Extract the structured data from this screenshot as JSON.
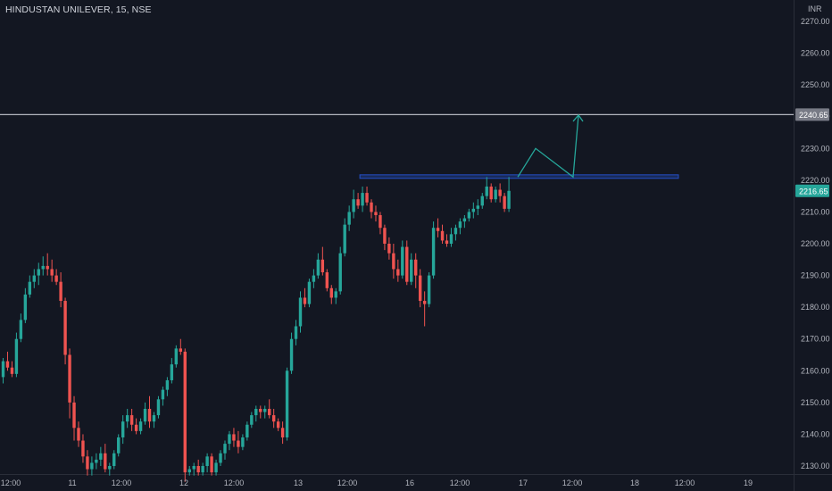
{
  "header": {
    "symbol_label": "HINDUSTAN UNILEVER, 15, NSE"
  },
  "price_axis": {
    "currency": "INR",
    "ticks": [
      "2270.00",
      "2260.00",
      "2250.00",
      "2240.00",
      "2230.00",
      "2220.00",
      "2210.00",
      "2200.00",
      "2190.00",
      "2180.00",
      "2170.00",
      "2160.00",
      "2150.00",
      "2140.00",
      "2130.00"
    ]
  },
  "badges": {
    "horizontal_line_price": "2240.65",
    "last_price": "2216.65"
  },
  "colors": {
    "background": "#131722",
    "up": "#26a69a",
    "down": "#ef5350",
    "hline": "#b2b5be",
    "zone": "#2962ff",
    "projection": "#26a69a"
  },
  "chart_data": {
    "type": "candlestick",
    "ylim": [
      2127,
      2273
    ],
    "time_labels": [
      "12:00",
      "11",
      "12:00",
      "12",
      "12:00",
      "13",
      "12:00",
      "16",
      "12:00",
      "17",
      "12:00",
      "18",
      "12:00",
      "19"
    ],
    "horizontal_line": 2240.65,
    "resistance_zone": [
      2220.7,
      2221.7
    ],
    "projection_path": [
      2221,
      2230,
      2221,
      2240.5
    ],
    "candles": [
      [
        2158,
        2164,
        2156,
        2163
      ],
      [
        2163,
        2166,
        2160,
        2161
      ],
      [
        2161,
        2163,
        2158,
        2159
      ],
      [
        2159,
        2172,
        2158,
        2170
      ],
      [
        2170,
        2178,
        2169,
        2176
      ],
      [
        2176,
        2186,
        2175,
        2184
      ],
      [
        2184,
        2190,
        2183,
        2188
      ],
      [
        2188,
        2192,
        2186,
        2190
      ],
      [
        2190,
        2194,
        2187,
        2192
      ],
      [
        2192,
        2196,
        2190,
        2193
      ],
      [
        2193,
        2197,
        2190,
        2192
      ],
      [
        2192,
        2195,
        2188,
        2190
      ],
      [
        2190,
        2192,
        2187,
        2188
      ],
      [
        2188,
        2191,
        2180,
        2182
      ],
      [
        2182,
        2183,
        2162,
        2165
      ],
      [
        2165,
        2167,
        2145,
        2150
      ],
      [
        2150,
        2152,
        2138,
        2142
      ],
      [
        2142,
        2144,
        2136,
        2138
      ],
      [
        2138,
        2140,
        2131,
        2133
      ],
      [
        2133,
        2135,
        2127,
        2129
      ],
      [
        2129,
        2133,
        2127,
        2131
      ],
      [
        2131,
        2134,
        2129,
        2132
      ],
      [
        2132,
        2136,
        2130,
        2134
      ],
      [
        2134,
        2137,
        2128,
        2129
      ],
      [
        2129,
        2131,
        2127,
        2130
      ],
      [
        2130,
        2135,
        2129,
        2134
      ],
      [
        2134,
        2140,
        2133,
        2139
      ],
      [
        2139,
        2146,
        2137,
        2144
      ],
      [
        2144,
        2148,
        2142,
        2146
      ],
      [
        2146,
        2148,
        2141,
        2143
      ],
      [
        2143,
        2145,
        2140,
        2141
      ],
      [
        2141,
        2145,
        2140,
        2144
      ],
      [
        2144,
        2150,
        2143,
        2148
      ],
      [
        2148,
        2152,
        2142,
        2144
      ],
      [
        2144,
        2147,
        2142,
        2146
      ],
      [
        2146,
        2152,
        2145,
        2151
      ],
      [
        2151,
        2155,
        2149,
        2154
      ],
      [
        2154,
        2158,
        2152,
        2157
      ],
      [
        2157,
        2164,
        2156,
        2162
      ],
      [
        2162,
        2168,
        2161,
        2167
      ],
      [
        2167,
        2170,
        2165,
        2166
      ],
      [
        2166,
        2167,
        2125,
        2128
      ],
      [
        2128,
        2130,
        2127,
        2129
      ],
      [
        2129,
        2131,
        2127,
        2130
      ],
      [
        2130,
        2132,
        2127,
        2128
      ],
      [
        2128,
        2131,
        2127,
        2130
      ],
      [
        2130,
        2134,
        2128,
        2133
      ],
      [
        2133,
        2134,
        2127,
        2128
      ],
      [
        2128,
        2132,
        2127,
        2131
      ],
      [
        2131,
        2135,
        2130,
        2134
      ],
      [
        2134,
        2138,
        2132,
        2137
      ],
      [
        2137,
        2141,
        2135,
        2140
      ],
      [
        2140,
        2142,
        2136,
        2138
      ],
      [
        2138,
        2141,
        2134,
        2136
      ],
      [
        2136,
        2140,
        2135,
        2139
      ],
      [
        2139,
        2144,
        2138,
        2143
      ],
      [
        2143,
        2147,
        2142,
        2146
      ],
      [
        2146,
        2149,
        2144,
        2148
      ],
      [
        2148,
        2149,
        2145,
        2147
      ],
      [
        2147,
        2149,
        2145,
        2148
      ],
      [
        2148,
        2151,
        2145,
        2146
      ],
      [
        2146,
        2148,
        2142,
        2144
      ],
      [
        2144,
        2145,
        2141,
        2142
      ],
      [
        2142,
        2144,
        2137,
        2139
      ],
      [
        2139,
        2161,
        2138,
        2160
      ],
      [
        2160,
        2172,
        2159,
        2170
      ],
      [
        2170,
        2176,
        2168,
        2174
      ],
      [
        2174,
        2185,
        2172,
        2183
      ],
      [
        2183,
        2186,
        2180,
        2181
      ],
      [
        2181,
        2189,
        2180,
        2188
      ],
      [
        2188,
        2192,
        2186,
        2190
      ],
      [
        2190,
        2197,
        2189,
        2195
      ],
      [
        2195,
        2199,
        2190,
        2191
      ],
      [
        2191,
        2192,
        2185,
        2186
      ],
      [
        2186,
        2187,
        2181,
        2183
      ],
      [
        2183,
        2186,
        2181,
        2185
      ],
      [
        2185,
        2199,
        2184,
        2197
      ],
      [
        2197,
        2208,
        2196,
        2206
      ],
      [
        2206,
        2212,
        2204,
        2210
      ],
      [
        2210,
        2217,
        2208,
        2214
      ],
      [
        2214,
        2216,
        2211,
        2212
      ],
      [
        2212,
        2218,
        2210,
        2216
      ],
      [
        2216,
        2218,
        2212,
        2213
      ],
      [
        2213,
        2214,
        2208,
        2210
      ],
      [
        2210,
        2212,
        2207,
        2209
      ],
      [
        2209,
        2210,
        2203,
        2205
      ],
      [
        2205,
        2206,
        2198,
        2200
      ],
      [
        2200,
        2202,
        2195,
        2197
      ],
      [
        2197,
        2200,
        2189,
        2192
      ],
      [
        2192,
        2195,
        2188,
        2190
      ],
      [
        2190,
        2201,
        2189,
        2199
      ],
      [
        2199,
        2201,
        2187,
        2188
      ],
      [
        2188,
        2197,
        2187,
        2195
      ],
      [
        2195,
        2197,
        2186,
        2190
      ],
      [
        2190,
        2192,
        2180,
        2182
      ],
      [
        2182,
        2185,
        2174,
        2181
      ],
      [
        2181,
        2191,
        2180,
        2190
      ],
      [
        2190,
        2207,
        2189,
        2205
      ],
      [
        2205,
        2208,
        2202,
        2204
      ],
      [
        2204,
        2206,
        2200,
        2201
      ],
      [
        2201,
        2203,
        2199,
        2200
      ],
      [
        2200,
        2205,
        2199,
        2203
      ],
      [
        2203,
        2206,
        2201,
        2205
      ],
      [
        2205,
        2208,
        2203,
        2207
      ],
      [
        2207,
        2209,
        2205,
        2208
      ],
      [
        2208,
        2211,
        2207,
        2210
      ],
      [
        2210,
        2213,
        2208,
        2211
      ],
      [
        2211,
        2214,
        2209,
        2212
      ],
      [
        2212,
        2216,
        2211,
        2215
      ],
      [
        2215,
        2221,
        2214,
        2218
      ],
      [
        2218,
        2219,
        2213,
        2214
      ],
      [
        2214,
        2218,
        2213,
        2217
      ],
      [
        2217,
        2219,
        2213,
        2215
      ],
      [
        2215,
        2216,
        2210,
        2211
      ],
      [
        2211,
        2221,
        2210,
        2216.65
      ]
    ]
  }
}
